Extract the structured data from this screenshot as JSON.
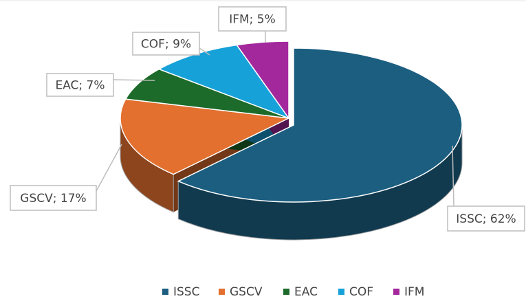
{
  "chart_data": {
    "type": "pie3d",
    "categories": [
      "ISSC",
      "GSCV",
      "EAC",
      "COF",
      "IFM"
    ],
    "values": [
      62,
      17,
      7,
      9,
      5
    ],
    "value_labels": [
      "ISSC; 62%",
      "GSCV; 17%",
      "EAC; 7%",
      "COF; 9%",
      "IFM; 5%"
    ],
    "colors": [
      "#1b5e80",
      "#e3702f",
      "#1d6b2a",
      "#17a1d9",
      "#a3289c"
    ],
    "legend": "bottom"
  }
}
